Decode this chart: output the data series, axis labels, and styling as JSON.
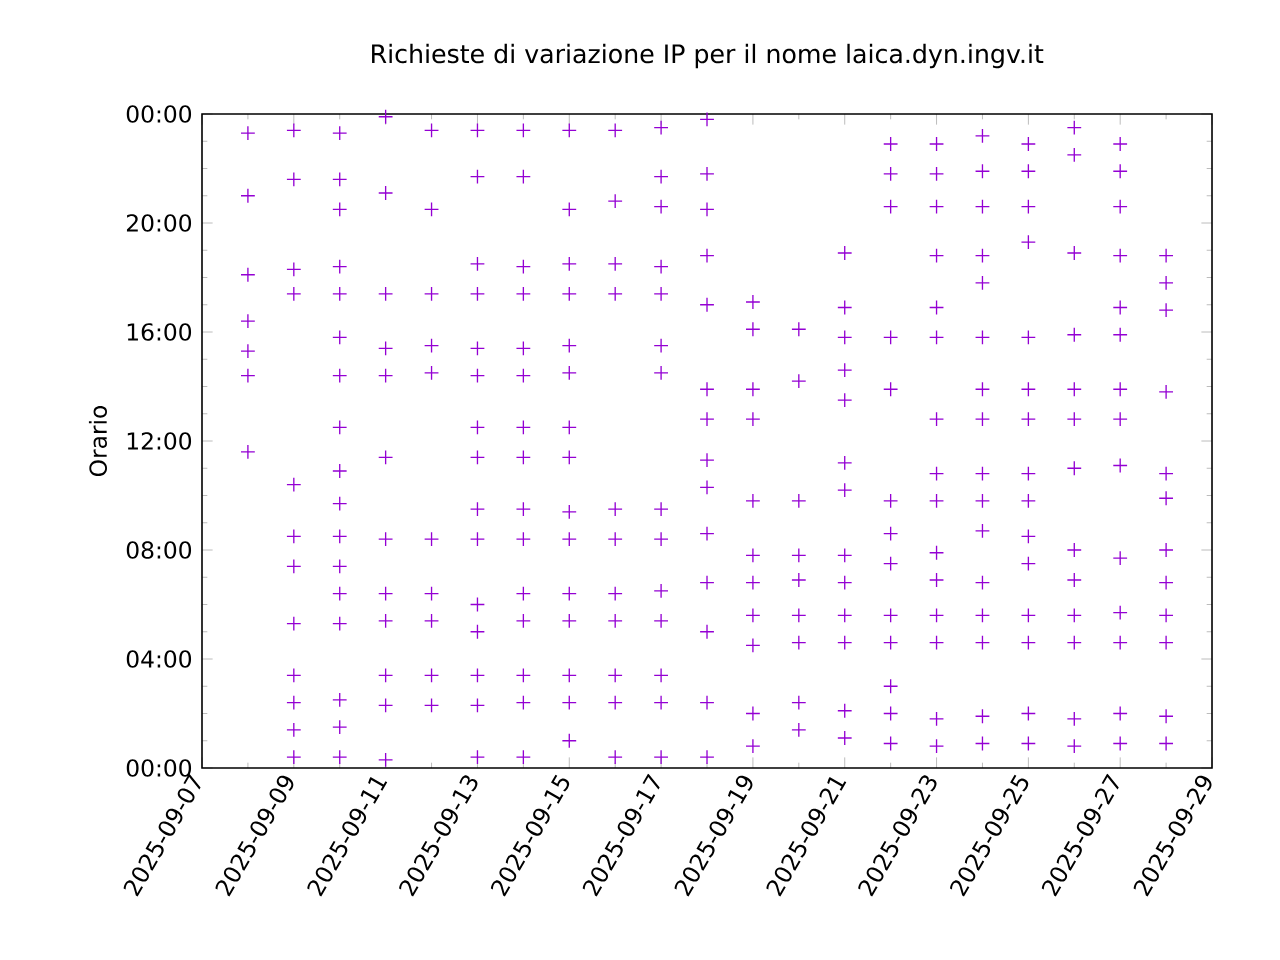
{
  "chart_data": {
    "type": "scatter",
    "title": "Richieste di variazione IP per il nome laica.dyn.ingv.it",
    "ylabel": "Orario",
    "marker": "cross",
    "xlim": [
      "2025-09-07",
      "2025-09-29"
    ],
    "xticks": [
      "2025-09-07",
      "2025-09-09",
      "2025-09-11",
      "2025-09-13",
      "2025-09-15",
      "2025-09-17",
      "2025-09-19",
      "2025-09-21",
      "2025-09-23",
      "2025-09-25",
      "2025-09-27",
      "2025-09-29"
    ],
    "ylim": [
      0,
      24
    ],
    "yticks": [
      {
        "value": 0,
        "label": "00:00"
      },
      {
        "value": 4,
        "label": "04:00"
      },
      {
        "value": 8,
        "label": "08:00"
      },
      {
        "value": 12,
        "label": "12:00"
      },
      {
        "value": 16,
        "label": "16:00"
      },
      {
        "value": 20,
        "label": "20:00"
      },
      {
        "value": 24,
        "label": "00:00"
      }
    ],
    "series": [
      {
        "color": "#9400d3",
        "x": [
          "2025-09-08",
          "2025-09-08",
          "2025-09-08",
          "2025-09-08",
          "2025-09-08",
          "2025-09-08",
          "2025-09-08",
          "2025-09-09",
          "2025-09-09",
          "2025-09-09",
          "2025-09-09",
          "2025-09-09",
          "2025-09-09",
          "2025-09-09",
          "2025-09-09",
          "2025-09-09",
          "2025-09-09",
          "2025-09-09",
          "2025-09-09",
          "2025-09-10",
          "2025-09-10",
          "2025-09-10",
          "2025-09-10",
          "2025-09-10",
          "2025-09-10",
          "2025-09-10",
          "2025-09-10",
          "2025-09-10",
          "2025-09-10",
          "2025-09-10",
          "2025-09-10",
          "2025-09-10",
          "2025-09-10",
          "2025-09-10",
          "2025-09-10",
          "2025-09-10",
          "2025-09-11",
          "2025-09-11",
          "2025-09-11",
          "2025-09-11",
          "2025-09-11",
          "2025-09-11",
          "2025-09-11",
          "2025-09-11",
          "2025-09-11",
          "2025-09-11",
          "2025-09-11",
          "2025-09-11",
          "2025-09-12",
          "2025-09-12",
          "2025-09-12",
          "2025-09-12",
          "2025-09-12",
          "2025-09-12",
          "2025-09-12",
          "2025-09-12",
          "2025-09-12",
          "2025-09-12",
          "2025-09-13",
          "2025-09-13",
          "2025-09-13",
          "2025-09-13",
          "2025-09-13",
          "2025-09-13",
          "2025-09-13",
          "2025-09-13",
          "2025-09-13",
          "2025-09-13",
          "2025-09-13",
          "2025-09-13",
          "2025-09-13",
          "2025-09-13",
          "2025-09-13",
          "2025-09-14",
          "2025-09-14",
          "2025-09-14",
          "2025-09-14",
          "2025-09-14",
          "2025-09-14",
          "2025-09-14",
          "2025-09-14",
          "2025-09-14",
          "2025-09-14",
          "2025-09-14",
          "2025-09-14",
          "2025-09-14",
          "2025-09-14",
          "2025-09-14",
          "2025-09-15",
          "2025-09-15",
          "2025-09-15",
          "2025-09-15",
          "2025-09-15",
          "2025-09-15",
          "2025-09-15",
          "2025-09-15",
          "2025-09-15",
          "2025-09-15",
          "2025-09-15",
          "2025-09-15",
          "2025-09-15",
          "2025-09-15",
          "2025-09-15",
          "2025-09-16",
          "2025-09-16",
          "2025-09-16",
          "2025-09-16",
          "2025-09-16",
          "2025-09-16",
          "2025-09-16",
          "2025-09-16",
          "2025-09-16",
          "2025-09-16",
          "2025-09-16",
          "2025-09-17",
          "2025-09-17",
          "2025-09-17",
          "2025-09-17",
          "2025-09-17",
          "2025-09-17",
          "2025-09-17",
          "2025-09-17",
          "2025-09-17",
          "2025-09-17",
          "2025-09-17",
          "2025-09-17",
          "2025-09-17",
          "2025-09-17",
          "2025-09-18",
          "2025-09-18",
          "2025-09-18",
          "2025-09-18",
          "2025-09-18",
          "2025-09-18",
          "2025-09-18",
          "2025-09-18",
          "2025-09-18",
          "2025-09-18",
          "2025-09-18",
          "2025-09-18",
          "2025-09-18",
          "2025-09-18",
          "2025-09-19",
          "2025-09-19",
          "2025-09-19",
          "2025-09-19",
          "2025-09-19",
          "2025-09-19",
          "2025-09-19",
          "2025-09-19",
          "2025-09-19",
          "2025-09-19",
          "2025-09-19",
          "2025-09-20",
          "2025-09-20",
          "2025-09-20",
          "2025-09-20",
          "2025-09-20",
          "2025-09-20",
          "2025-09-20",
          "2025-09-20",
          "2025-09-20",
          "2025-09-21",
          "2025-09-21",
          "2025-09-21",
          "2025-09-21",
          "2025-09-21",
          "2025-09-21",
          "2025-09-21",
          "2025-09-21",
          "2025-09-21",
          "2025-09-21",
          "2025-09-21",
          "2025-09-21",
          "2025-09-21",
          "2025-09-22",
          "2025-09-22",
          "2025-09-22",
          "2025-09-22",
          "2025-09-22",
          "2025-09-22",
          "2025-09-22",
          "2025-09-22",
          "2025-09-22",
          "2025-09-22",
          "2025-09-22",
          "2025-09-22",
          "2025-09-22",
          "2025-09-23",
          "2025-09-23",
          "2025-09-23",
          "2025-09-23",
          "2025-09-23",
          "2025-09-23",
          "2025-09-23",
          "2025-09-23",
          "2025-09-23",
          "2025-09-23",
          "2025-09-23",
          "2025-09-23",
          "2025-09-23",
          "2025-09-23",
          "2025-09-23",
          "2025-09-24",
          "2025-09-24",
          "2025-09-24",
          "2025-09-24",
          "2025-09-24",
          "2025-09-24",
          "2025-09-24",
          "2025-09-24",
          "2025-09-24",
          "2025-09-24",
          "2025-09-24",
          "2025-09-24",
          "2025-09-24",
          "2025-09-24",
          "2025-09-24",
          "2025-09-24",
          "2025-09-25",
          "2025-09-25",
          "2025-09-25",
          "2025-09-25",
          "2025-09-25",
          "2025-09-25",
          "2025-09-25",
          "2025-09-25",
          "2025-09-25",
          "2025-09-25",
          "2025-09-25",
          "2025-09-25",
          "2025-09-25",
          "2025-09-25",
          "2025-09-25",
          "2025-09-26",
          "2025-09-26",
          "2025-09-26",
          "2025-09-26",
          "2025-09-26",
          "2025-09-26",
          "2025-09-26",
          "2025-09-26",
          "2025-09-26",
          "2025-09-26",
          "2025-09-26",
          "2025-09-26",
          "2025-09-26",
          "2025-09-27",
          "2025-09-27",
          "2025-09-27",
          "2025-09-27",
          "2025-09-27",
          "2025-09-27",
          "2025-09-27",
          "2025-09-27",
          "2025-09-27",
          "2025-09-27",
          "2025-09-27",
          "2025-09-27",
          "2025-09-27",
          "2025-09-27",
          "2025-09-28",
          "2025-09-28",
          "2025-09-28",
          "2025-09-28",
          "2025-09-28",
          "2025-09-28",
          "2025-09-28",
          "2025-09-28",
          "2025-09-28",
          "2025-09-28",
          "2025-09-28",
          "2025-09-28"
        ],
        "values": [
          23.3,
          21.0,
          18.1,
          16.4,
          15.3,
          14.4,
          11.6,
          23.4,
          21.6,
          18.3,
          17.4,
          10.4,
          8.5,
          7.4,
          5.3,
          3.4,
          2.4,
          1.4,
          0.4,
          23.3,
          21.6,
          20.5,
          18.4,
          17.4,
          15.8,
          14.4,
          12.5,
          10.9,
          9.7,
          8.5,
          7.4,
          6.4,
          5.3,
          2.5,
          1.5,
          0.4,
          23.9,
          21.1,
          17.4,
          15.4,
          14.4,
          11.4,
          8.4,
          6.4,
          5.4,
          3.4,
          2.3,
          0.3,
          23.4,
          20.5,
          17.4,
          15.5,
          14.5,
          8.4,
          6.4,
          5.4,
          3.4,
          2.3,
          23.4,
          21.7,
          18.5,
          17.4,
          15.4,
          14.4,
          12.5,
          11.4,
          9.5,
          8.4,
          6.0,
          5.0,
          3.4,
          2.3,
          0.4,
          23.4,
          21.7,
          18.4,
          17.4,
          15.4,
          14.4,
          12.5,
          11.4,
          9.5,
          8.4,
          6.4,
          5.4,
          3.4,
          2.4,
          0.4,
          23.4,
          20.5,
          18.5,
          17.4,
          15.5,
          14.5,
          12.5,
          11.4,
          9.4,
          8.4,
          6.4,
          5.4,
          3.4,
          2.4,
          1.0,
          23.4,
          20.8,
          18.5,
          17.4,
          9.5,
          8.4,
          6.4,
          5.4,
          3.4,
          2.4,
          0.4,
          23.5,
          21.7,
          20.6,
          18.4,
          17.4,
          15.5,
          14.5,
          9.5,
          8.4,
          6.5,
          5.4,
          3.4,
          2.4,
          0.4,
          23.8,
          21.8,
          20.5,
          18.8,
          17.0,
          13.9,
          12.8,
          11.3,
          10.3,
          8.6,
          6.8,
          5.0,
          2.4,
          0.4,
          17.1,
          16.1,
          13.9,
          12.8,
          9.8,
          7.8,
          6.8,
          5.6,
          4.5,
          2.0,
          0.8,
          16.1,
          14.2,
          9.8,
          7.8,
          6.9,
          5.6,
          4.6,
          2.4,
          1.4,
          18.9,
          16.9,
          15.8,
          14.6,
          13.5,
          11.2,
          10.2,
          7.8,
          6.8,
          5.6,
          4.6,
          2.1,
          1.1,
          22.9,
          21.8,
          20.6,
          15.8,
          13.9,
          9.8,
          8.6,
          7.5,
          5.6,
          4.6,
          3.0,
          2.0,
          0.9,
          22.9,
          21.8,
          20.6,
          18.8,
          16.9,
          15.8,
          12.8,
          10.8,
          9.8,
          7.9,
          6.9,
          5.6,
          4.6,
          1.8,
          0.8,
          23.2,
          21.9,
          20.6,
          18.8,
          17.8,
          15.8,
          13.9,
          12.8,
          10.8,
          9.8,
          8.7,
          6.8,
          5.6,
          4.6,
          1.9,
          0.9,
          22.9,
          21.9,
          20.6,
          19.3,
          15.8,
          13.9,
          12.8,
          10.8,
          9.8,
          8.5,
          7.5,
          5.6,
          4.6,
          2.0,
          0.9,
          23.5,
          22.5,
          18.9,
          15.9,
          13.9,
          12.8,
          11.0,
          8.0,
          6.9,
          5.6,
          4.6,
          1.8,
          0.8,
          22.9,
          21.9,
          20.6,
          18.8,
          16.9,
          15.9,
          13.9,
          12.8,
          11.1,
          7.7,
          5.7,
          4.6,
          2.0,
          0.9,
          18.8,
          17.8,
          16.8,
          13.8,
          10.8,
          9.9,
          8.0,
          6.8,
          5.6,
          4.6,
          1.9,
          0.9
        ]
      }
    ]
  }
}
